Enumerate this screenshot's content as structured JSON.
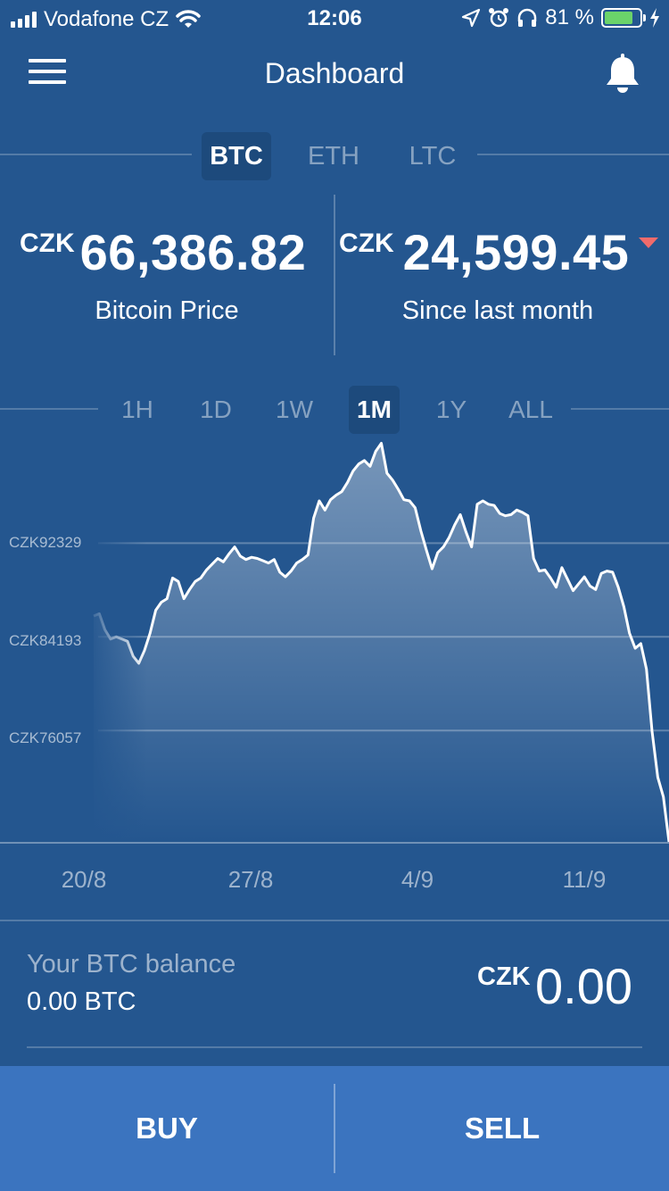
{
  "status_bar": {
    "carrier": "Vodafone CZ",
    "time": "12:06",
    "battery": "81 %",
    "battery_level": 0.81
  },
  "nav": {
    "title": "Dashboard",
    "menu_icon": "hamburger-icon",
    "bell_icon": "bell-icon"
  },
  "currency_tabs": [
    {
      "label": "BTC",
      "active": true
    },
    {
      "label": "ETH",
      "active": false
    },
    {
      "label": "LTC",
      "active": false
    }
  ],
  "prices": {
    "price": {
      "currency": "CZK",
      "value": "66,386.82",
      "label": "Bitcoin Price"
    },
    "change": {
      "currency": "CZK",
      "value": "24,599.45",
      "label": "Since last month",
      "direction": "down",
      "color": "#f06b6b"
    }
  },
  "period_tabs": [
    {
      "label": "1H",
      "active": false
    },
    {
      "label": "1D",
      "active": false
    },
    {
      "label": "1W",
      "active": false
    },
    {
      "label": "1M",
      "active": true
    },
    {
      "label": "1Y",
      "active": false
    },
    {
      "label": "ALL",
      "active": false
    }
  ],
  "chart_data": {
    "type": "area",
    "y_tick_labels": [
      "CZK92329",
      "CZK84193",
      "CZK76057"
    ],
    "y_ticks": [
      92329,
      84193,
      76057
    ],
    "x_tick_labels": [
      "20/8",
      "27/8",
      "4/9",
      "11/9"
    ],
    "ylim": [
      66386,
      101500
    ],
    "series": [
      {
        "values": [
          86000,
          86200,
          84800,
          84000,
          84200,
          84000,
          83800,
          82500,
          81900,
          83000,
          84500,
          86500,
          87200,
          87500,
          89300,
          89000,
          87500,
          88300,
          89000,
          89300,
          90000,
          90500,
          91000,
          90700,
          91400,
          92000,
          91200,
          90900,
          91100,
          91000,
          90800,
          90600,
          90900,
          89800,
          89400,
          89900,
          90600,
          90900,
          91300,
          94500,
          96000,
          95200,
          96100,
          96500,
          96800,
          97600,
          98600,
          99200,
          99500,
          99000,
          100300,
          101000,
          98400,
          97800,
          97000,
          96100,
          96000,
          95400,
          93400,
          91700,
          90100,
          91500,
          92000,
          92800,
          93900,
          94800,
          93300,
          92000,
          95700,
          96000,
          95700,
          95600,
          94900,
          94700,
          94800,
          95200,
          95000,
          94700,
          91000,
          89900,
          90000,
          89300,
          88500,
          90200,
          89200,
          88200,
          88800,
          89400,
          88600,
          88300,
          89700,
          89900,
          89800,
          88500,
          86800,
          84500,
          83200,
          83600,
          81400,
          76000,
          72000,
          70300,
          66386
        ],
        "color": "#ffffff"
      }
    ],
    "grid": true
  },
  "balance": {
    "label": "Your BTC balance",
    "btc": "0.00 BTC",
    "currency": "CZK",
    "value": "0.00"
  },
  "actions": {
    "buy": "BUY",
    "sell": "SELL",
    "color": "#3b74bf"
  }
}
